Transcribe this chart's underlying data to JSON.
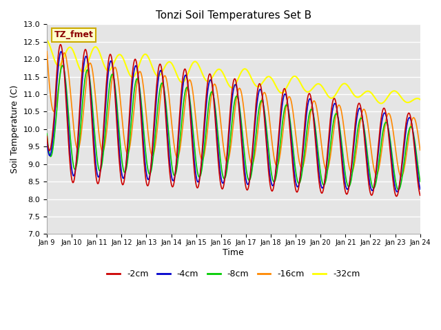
{
  "title": "Tonzi Soil Temperatures Set B",
  "xlabel": "Time",
  "ylabel": "Soil Temperature (C)",
  "ylim": [
    7.0,
    13.0
  ],
  "yticks": [
    7.0,
    7.5,
    8.0,
    8.5,
    9.0,
    9.5,
    10.0,
    10.5,
    11.0,
    11.5,
    12.0,
    12.5,
    13.0
  ],
  "colors": {
    "-2cm": "#cc0000",
    "-4cm": "#0000cc",
    "-8cm": "#00cc00",
    "-16cm": "#ff8800",
    "-32cm": "#ffff00"
  },
  "legend_label": "TZ_fmet",
  "start_day": 9,
  "end_day": 24,
  "n_points": 720,
  "plot_background": "#e5e5e5"
}
